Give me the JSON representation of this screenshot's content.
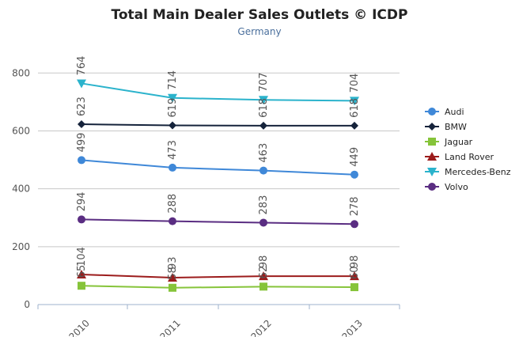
{
  "chart_data": {
    "type": "line",
    "title": "Total Main Dealer Sales Outlets © ICDP",
    "subtitle": "Germany",
    "xlabel": "",
    "ylabel": "",
    "categories": [
      "2010",
      "2011",
      "2012",
      "2013"
    ],
    "ylim": [
      0,
      880
    ],
    "yticks": [
      0,
      200,
      400,
      600,
      800
    ],
    "grid": true,
    "legend_position": "right",
    "series": [
      {
        "name": "Audi",
        "values": [
          499,
          473,
          463,
          449
        ],
        "color": "#3f88d8",
        "marker": "circle",
        "labels": [
          "499",
          "473",
          "463",
          "449"
        ]
      },
      {
        "name": "BMW",
        "values": [
          623,
          619,
          618,
          618
        ],
        "color": "#15233b",
        "marker": "diamond",
        "labels": [
          "623",
          "619",
          "618",
          "618"
        ]
      },
      {
        "name": "Jaguar",
        "values": [
          65,
          58,
          62,
          60
        ],
        "color": "#86c43a",
        "marker": "square",
        "labels": [
          "65",
          "58",
          "62",
          "60"
        ]
      },
      {
        "name": "Land Rover",
        "values": [
          104,
          93,
          98,
          98
        ],
        "color": "#9c1c1c",
        "marker": "triangle",
        "labels": [
          "104",
          "93",
          "98",
          "98"
        ]
      },
      {
        "name": "Mercedes-Benz",
        "values": [
          764,
          714,
          707,
          704
        ],
        "color": "#2bb3cc",
        "marker": "triangle-down",
        "labels": [
          "764",
          "714",
          "707",
          "704"
        ]
      },
      {
        "name": "Volvo",
        "values": [
          294,
          288,
          283,
          278
        ],
        "color": "#5a2d82",
        "marker": "circle",
        "labels": [
          "294",
          "288",
          "283",
          "278"
        ]
      }
    ]
  }
}
